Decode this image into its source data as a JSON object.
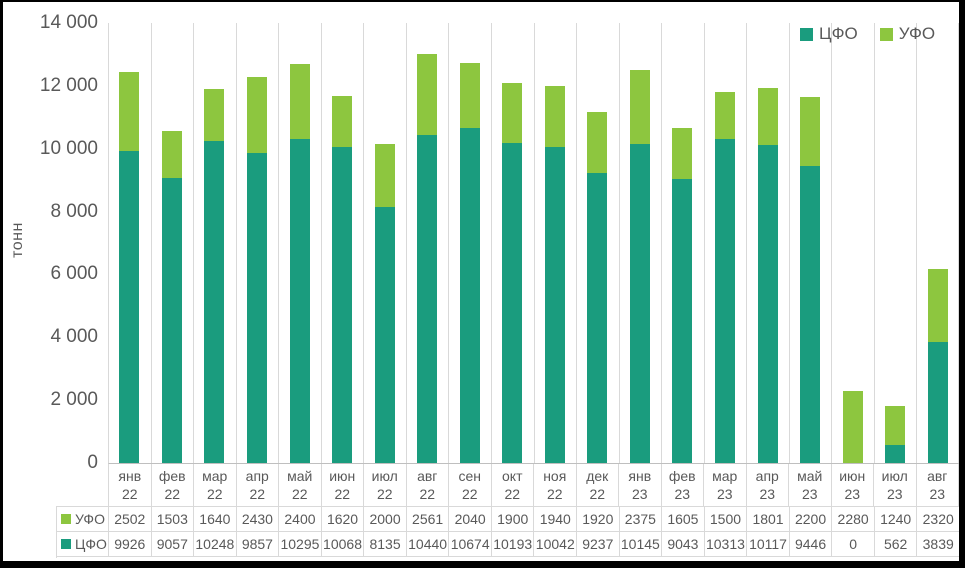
{
  "chart_data": {
    "type": "bar",
    "stacked": true,
    "title": "",
    "xlabel": "",
    "ylabel": "тонн",
    "ylim": [
      0,
      14000
    ],
    "grid": "vertical-only",
    "legend_position": "top-right",
    "yticks": [
      {
        "value": 0,
        "label": "0"
      },
      {
        "value": 2000,
        "label": "2 000"
      },
      {
        "value": 4000,
        "label": "4 000"
      },
      {
        "value": 6000,
        "label": "6 000"
      },
      {
        "value": 8000,
        "label": "8 000"
      },
      {
        "value": 10000,
        "label": "10 000"
      },
      {
        "value": 12000,
        "label": "12 000"
      },
      {
        "value": 14000,
        "label": "14 000"
      }
    ],
    "categories": [
      {
        "month": "янв",
        "year": "22"
      },
      {
        "month": "фев",
        "year": "22"
      },
      {
        "month": "мар",
        "year": "22"
      },
      {
        "month": "апр",
        "year": "22"
      },
      {
        "month": "май",
        "year": "22"
      },
      {
        "month": "июн",
        "year": "22"
      },
      {
        "month": "июл",
        "year": "22"
      },
      {
        "month": "авг",
        "year": "22"
      },
      {
        "month": "сен",
        "year": "22"
      },
      {
        "month": "окт",
        "year": "22"
      },
      {
        "month": "ноя",
        "year": "22"
      },
      {
        "month": "дек",
        "year": "22"
      },
      {
        "month": "янв",
        "year": "23"
      },
      {
        "month": "фев",
        "year": "23"
      },
      {
        "month": "мар",
        "year": "23"
      },
      {
        "month": "апр",
        "year": "23"
      },
      {
        "month": "май",
        "year": "23"
      },
      {
        "month": "июн",
        "year": "23"
      },
      {
        "month": "июл",
        "year": "23"
      },
      {
        "month": "авг",
        "year": "23"
      }
    ],
    "series": [
      {
        "name": "ЦФО",
        "slug": "cfo",
        "color": "#1a9c7e",
        "values": [
          9926,
          9057,
          10248,
          9857,
          10295,
          10068,
          8135,
          10440,
          10674,
          10193,
          10042,
          9237,
          10145,
          9043,
          10313,
          10117,
          9446,
          0,
          562,
          3839
        ]
      },
      {
        "name": "УФО",
        "slug": "ufo",
        "color": "#8dc63f",
        "values": [
          2502,
          1503,
          1640,
          2430,
          2400,
          1620,
          2000,
          2561,
          2040,
          1900,
          1940,
          1920,
          2375,
          1605,
          1500,
          1801,
          2200,
          2280,
          1240,
          2320
        ]
      }
    ],
    "legend_order": [
      "ЦФО",
      "УФО"
    ],
    "table_row_order": [
      "УФО",
      "ЦФО"
    ]
  },
  "colors": {
    "background": "#ffffff",
    "frame_border": "#000000",
    "gridline": "#d9d9d9",
    "axis_line": "#bfbfbf",
    "table_border": "#d9d9d9",
    "text": "#595959",
    "series_cfo": "#1a9c7e",
    "series_ufo": "#8dc63f"
  }
}
